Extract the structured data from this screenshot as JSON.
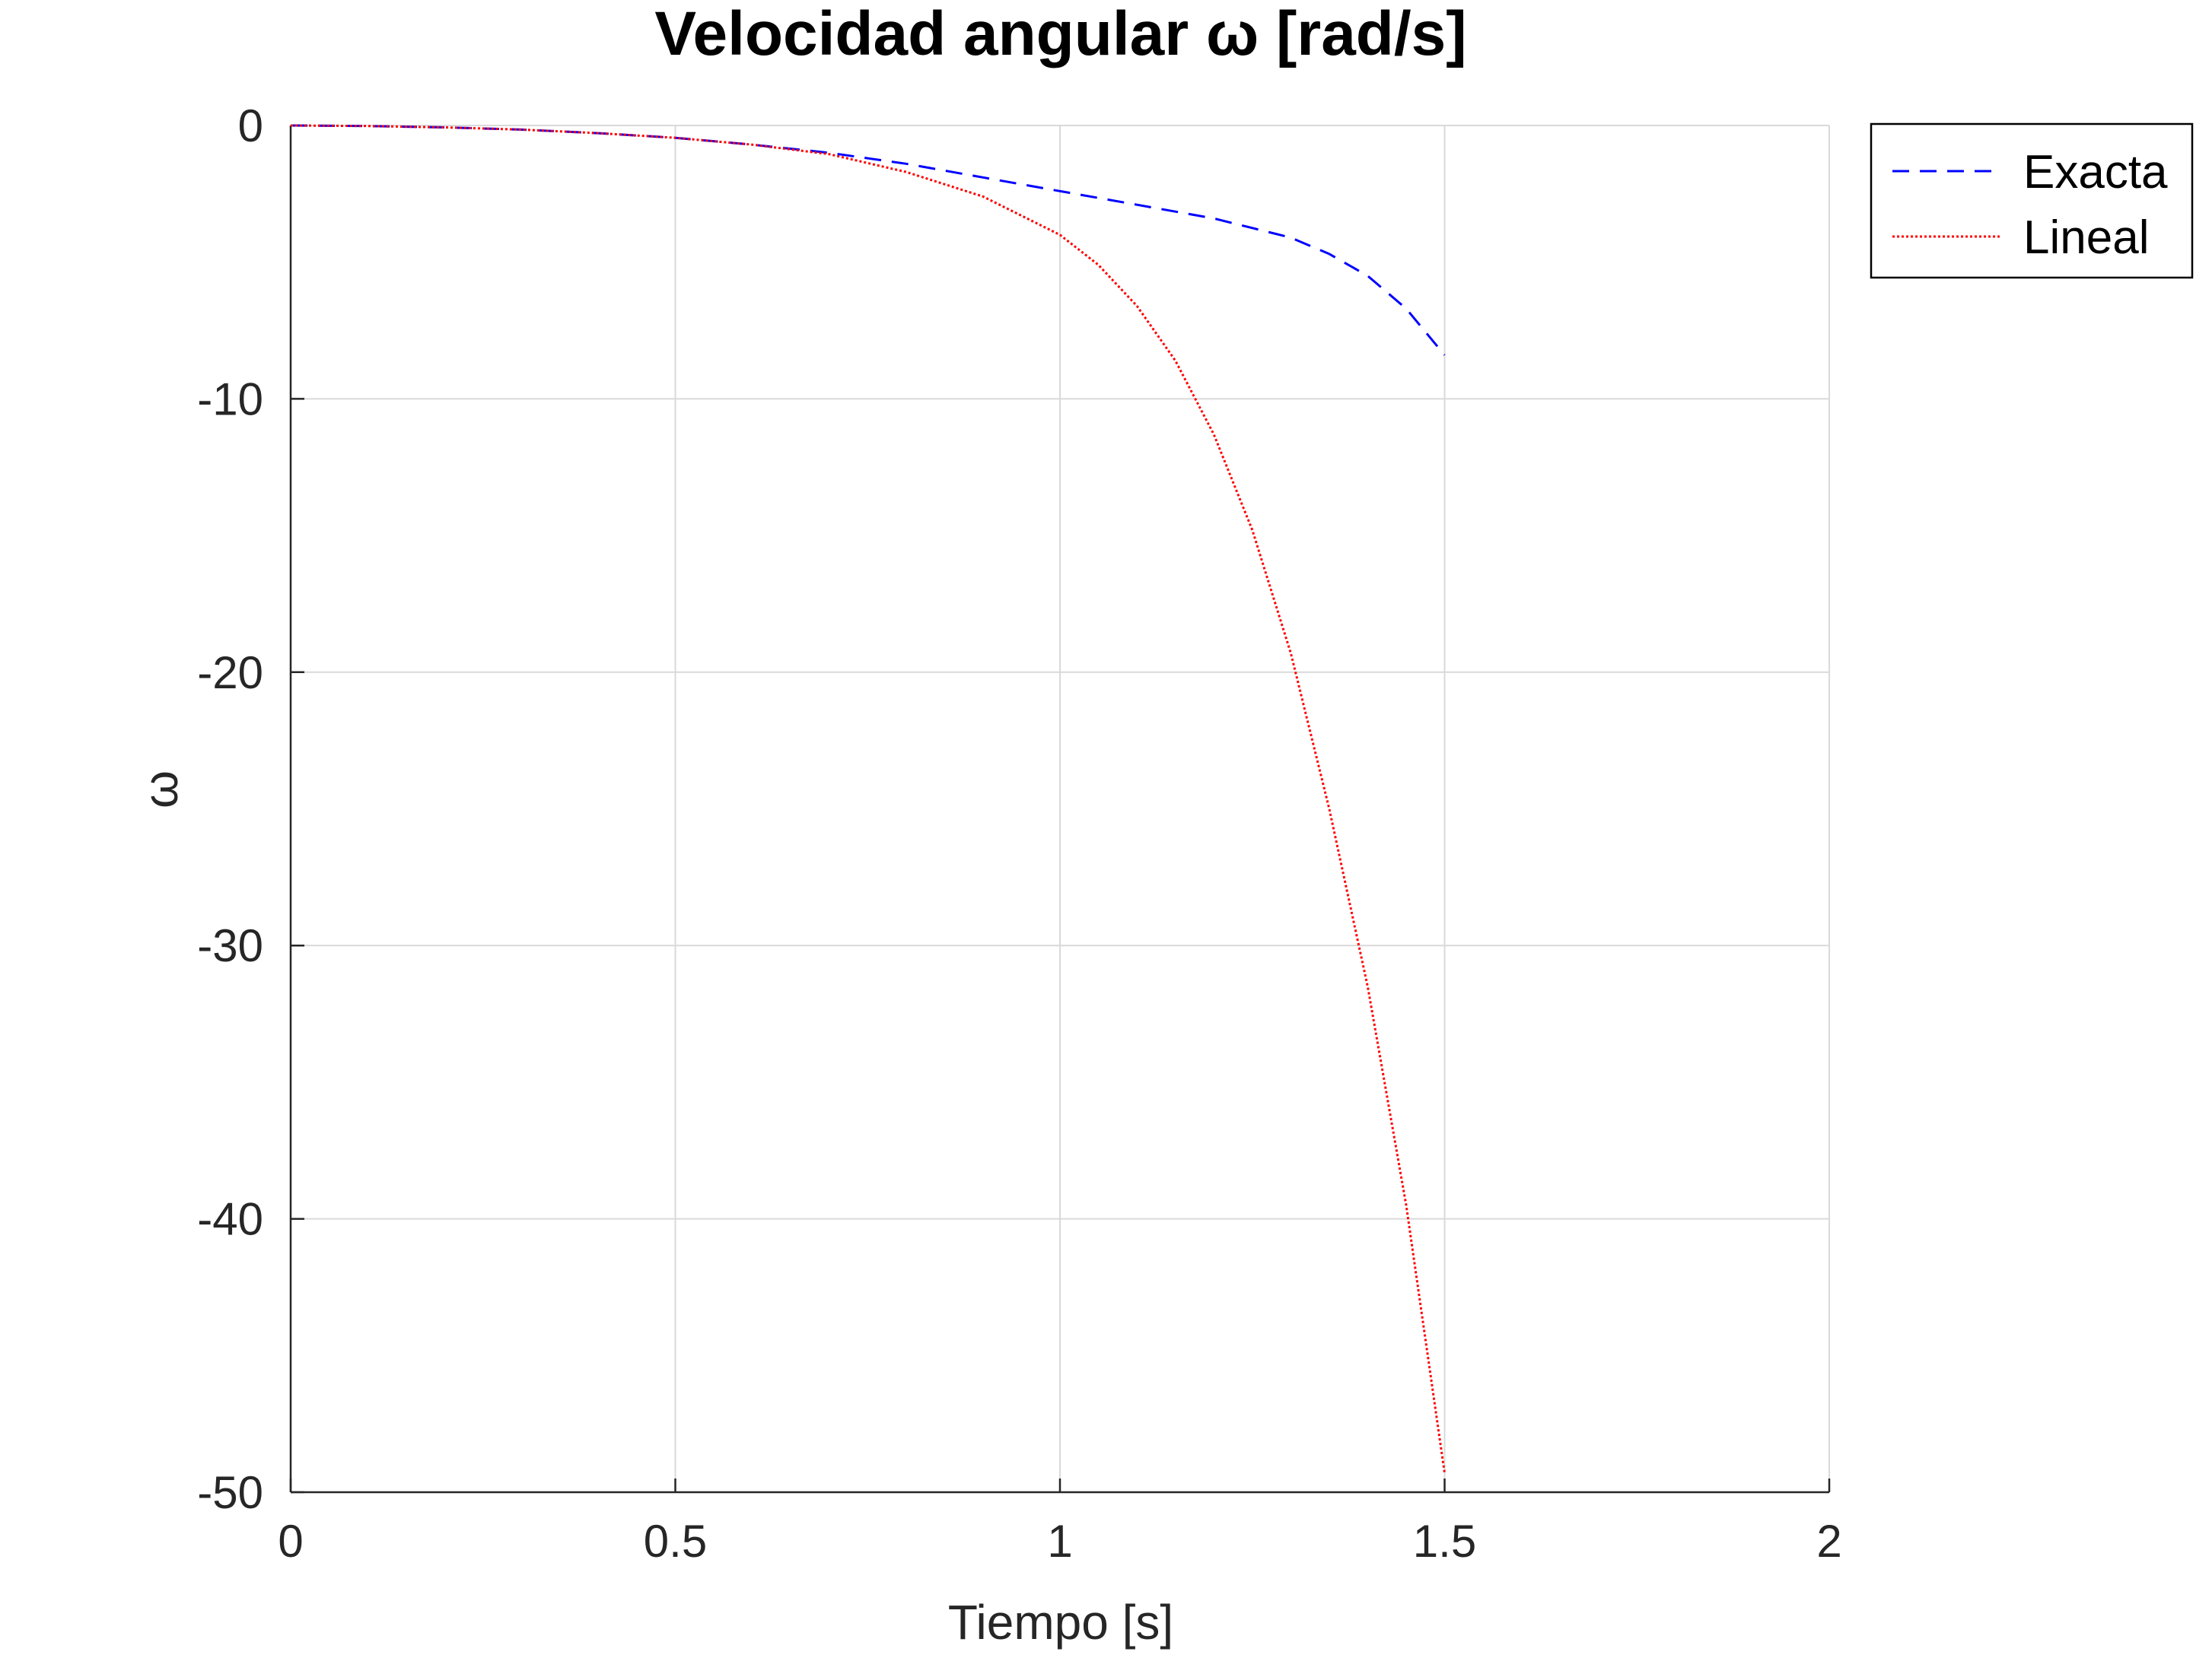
{
  "chart_data": {
    "type": "line",
    "title": "Velocidad angular ω [rad/s]",
    "xlabel": "Tiempo [s]",
    "ylabel": "ω",
    "xlim": [
      0,
      2
    ],
    "ylim": [
      -50,
      0
    ],
    "xticks": [
      0,
      0.5,
      1,
      1.5,
      2
    ],
    "xtick_labels": [
      "0",
      "0.5",
      "1",
      "1.5",
      "2"
    ],
    "yticks": [
      0,
      -10,
      -20,
      -30,
      -40,
      -50
    ],
    "ytick_labels": [
      "0",
      "-10",
      "-20",
      "-30",
      "-40",
      "-50"
    ],
    "grid": true,
    "legend_position": "outside-top-right",
    "series": [
      {
        "name": "Exacta",
        "color": "#0000ff",
        "style": "dashed",
        "x": [
          0,
          0.1,
          0.2,
          0.3,
          0.4,
          0.5,
          0.6,
          0.7,
          0.8,
          0.9,
          1.0,
          1.1,
          1.2,
          1.3,
          1.35,
          1.4,
          1.45,
          1.5
        ],
        "y": [
          0,
          -0.02,
          -0.07,
          -0.15,
          -0.28,
          -0.45,
          -0.7,
          -1.0,
          -1.4,
          -1.9,
          -2.4,
          -2.9,
          -3.4,
          -4.1,
          -4.7,
          -5.5,
          -6.7,
          -8.4
        ]
      },
      {
        "name": "Lineal",
        "color": "#ff0000",
        "style": "dotted",
        "x": [
          0,
          0.1,
          0.2,
          0.3,
          0.4,
          0.5,
          0.6,
          0.7,
          0.8,
          0.9,
          1.0,
          1.05,
          1.1,
          1.15,
          1.2,
          1.25,
          1.3,
          1.35,
          1.4,
          1.45,
          1.5
        ],
        "y": [
          0,
          -0.02,
          -0.07,
          -0.15,
          -0.28,
          -0.45,
          -0.7,
          -1.05,
          -1.7,
          -2.6,
          -4.0,
          -5.1,
          -6.6,
          -8.6,
          -11.3,
          -14.8,
          -19.3,
          -25.0,
          -31.5,
          -39.5,
          -49.3
        ]
      }
    ]
  }
}
